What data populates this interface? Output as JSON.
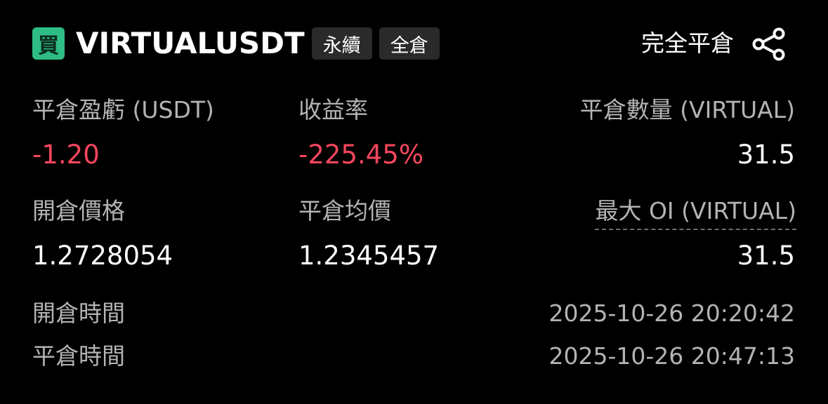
{
  "header": {
    "side_badge": "買",
    "symbol": "VIRTUALUSDT",
    "tags": [
      "永續",
      "全倉"
    ],
    "close_all_label": "完全平倉",
    "share_icon": "share-icon"
  },
  "stats": {
    "pnl_label": "平倉盈虧 (USDT)",
    "pnl_value": "-1.20",
    "roi_label": "收益率",
    "roi_value": "-225.45%",
    "close_qty_label": "平倉數量 (VIRTUAL)",
    "close_qty_value": "31.5",
    "entry_price_label": "開倉價格",
    "entry_price_value": "1.2728054",
    "avg_close_label": "平倉均價",
    "avg_close_value": "1.2345457",
    "max_oi_label": "最大 OI (VIRTUAL)",
    "max_oi_value": "31.5"
  },
  "times": {
    "open_label": "開倉時間",
    "open_value": "2025-10-26 20:20:42",
    "close_label": "平倉時間",
    "close_value": "2025-10-26 20:47:13"
  },
  "colors": {
    "buy": "#2ebd85",
    "negative": "#f6465d",
    "background": "#000000"
  }
}
